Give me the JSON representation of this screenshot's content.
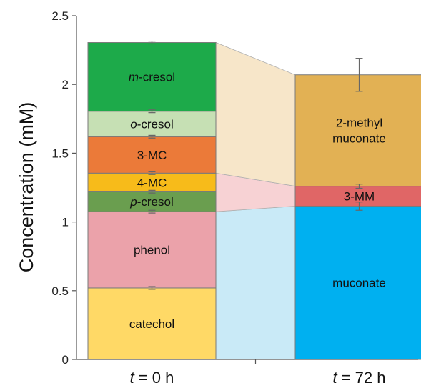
{
  "chart_data": {
    "type": "bar",
    "stacked": true,
    "ylabel": "Concentration (mM)",
    "ylim": [
      0,
      2.5
    ],
    "yticks": [
      0,
      0.5,
      1,
      1.5,
      2,
      2.5
    ],
    "ytick_labels": [
      "0",
      "0.5",
      "1",
      "1.5",
      "2",
      "2.5"
    ],
    "grid": false,
    "legend": "none",
    "categories": [
      {
        "label_var": "t",
        "label_rest": " = 0 h"
      },
      {
        "label_var": "t",
        "label_rest": " = 72 h"
      }
    ],
    "bars": [
      {
        "segments": [
          {
            "label": "catechol",
            "value": 0.52,
            "color": "#FFD966",
            "error_top": 0.01
          },
          {
            "label": "phenol",
            "value": 0.555,
            "color": "#EBA2AA",
            "error_top": 0.01
          },
          {
            "label_italic": "p",
            "label": "-cresol",
            "value": 0.145,
            "color": "#6A9E4F",
            "error_top": 0.01
          },
          {
            "label": "4-MC",
            "value": 0.135,
            "color": "#F7BB1A",
            "error_top": 0.01
          },
          {
            "label": "3-MC",
            "value": 0.265,
            "color": "#EB7A39",
            "error_top": 0.01
          },
          {
            "label_italic": "o",
            "label": "-cresol",
            "value": 0.185,
            "color": "#C6E0B4",
            "error_top": 0.01
          },
          {
            "label_italic": "m",
            "label": "-cresol",
            "value": 0.5,
            "color": "#1DAA4A",
            "error_top": 0.01
          }
        ]
      },
      {
        "segments": [
          {
            "label": "muconate",
            "value": 1.115,
            "color": "#00B0F0",
            "error_top": 0.03
          },
          {
            "label": "3-MM",
            "value": 0.145,
            "color": "#E06666",
            "error_top": 0.015
          },
          {
            "label_lines": [
              "2-methyl",
              "muconate"
            ],
            "value": 0.81,
            "color": "#E2B154",
            "error_top": 0.12
          }
        ]
      }
    ],
    "connectors": [
      {
        "from": [
          0,
          1.075
        ],
        "to": [
          0,
          1.115
        ],
        "color": "#C9EAF7"
      },
      {
        "from": [
          1.075,
          1.355
        ],
        "to": [
          1.115,
          1.26
        ],
        "color": "#F7D2D4"
      },
      {
        "from": [
          1.355,
          2.305
        ],
        "to": [
          1.26,
          2.07
        ],
        "color": "#F7E6C9"
      }
    ]
  }
}
